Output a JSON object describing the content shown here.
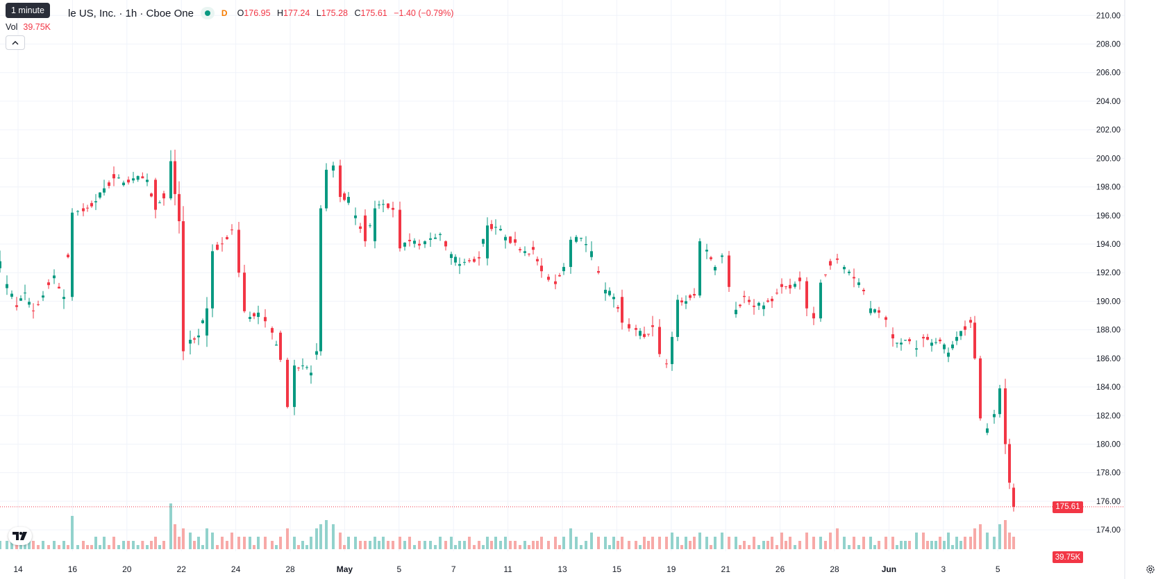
{
  "legend": {
    "tooltip": "1 minute",
    "title": "le US, Inc. · 1h · Cboe One",
    "badge": "D",
    "o_label": "O",
    "o": "176.95",
    "h_label": "H",
    "h": "177.24",
    "l_label": "L",
    "l": "175.28",
    "c_label": "C",
    "c": "175.61",
    "change": "−1.40 (−0.79%)"
  },
  "volume_legend": {
    "label": "Vol",
    "value": "39.75K"
  },
  "last_price_tag": "175.61",
  "last_volume_tag": "39.75K",
  "colors": {
    "up": "#089981",
    "down": "#f23645",
    "up_vol": "#92d2cc",
    "down_vol": "#f7a9a7"
  },
  "icons": {
    "logo": "tradingview-logo-icon",
    "collapse": "chevron-up-icon",
    "settings": "gear-icon",
    "market_status": "market-status-dot-icon"
  },
  "chart_data": {
    "type": "candlestick",
    "timeframe": "1h",
    "ylim": [
      172.5,
      210.5
    ],
    "y_ticks": [
      "174.00",
      "176.00",
      "178.00",
      "180.00",
      "182.00",
      "184.00",
      "186.00",
      "188.00",
      "190.00",
      "192.00",
      "194.00",
      "196.00",
      "198.00",
      "200.00",
      "202.00",
      "204.00",
      "206.00",
      "208.00",
      "210.00"
    ],
    "x_ticks": [
      "14",
      "16",
      "20",
      "22",
      "24",
      "28",
      "May",
      "5",
      "7",
      "11",
      "13",
      "15",
      "19",
      "21",
      "26",
      "28",
      "Jun",
      "3",
      "5"
    ],
    "anchors": [
      [
        0,
        192.8,
        1.4,
        2
      ],
      [
        10,
        191.2,
        1.4,
        2
      ],
      [
        24,
        189.6,
        1.2,
        3
      ],
      [
        36,
        190.6,
        1.0,
        2
      ],
      [
        48,
        189.3,
        0.9,
        2
      ],
      [
        62,
        190.4,
        1.0,
        2
      ],
      [
        78,
        191.8,
        1.2,
        2
      ],
      [
        92,
        190.3,
        1.3,
        2
      ],
      [
        104,
        196.2,
        1.0,
        8
      ],
      [
        120,
        196.3,
        0.8,
        2
      ],
      [
        138,
        197.0,
        1.0,
        3
      ],
      [
        150,
        197.9,
        1.0,
        3
      ],
      [
        164,
        198.6,
        1.0,
        3
      ],
      [
        178,
        198.3,
        1.0,
        2
      ],
      [
        192,
        198.6,
        0.8,
        2
      ],
      [
        212,
        198.5,
        0.7,
        1
      ],
      [
        224,
        196.4,
        1.3,
        3
      ],
      [
        236,
        197.2,
        1.2,
        2
      ],
      [
        246,
        199.8,
        1.5,
        11
      ],
      [
        252,
        197.5,
        1.6,
        6
      ],
      [
        258,
        195.6,
        1.6,
        3
      ],
      [
        264,
        186.5,
        2.5,
        5
      ],
      [
        274,
        187.3,
        1.5,
        4
      ],
      [
        286,
        187.6,
        1.2,
        3
      ],
      [
        298,
        189.5,
        1.4,
        5
      ],
      [
        306,
        193.5,
        1.2,
        4
      ],
      [
        320,
        194.0,
        0.9,
        3
      ],
      [
        334,
        195.0,
        1.0,
        4
      ],
      [
        344,
        192.0,
        1.2,
        3
      ],
      [
        352,
        189.3,
        1.2,
        3
      ],
      [
        360,
        188.9,
        1.0,
        3
      ],
      [
        372,
        189.2,
        1.0,
        3
      ],
      [
        382,
        188.6,
        1.0,
        3
      ],
      [
        392,
        187.8,
        1.0,
        2
      ],
      [
        404,
        185.9,
        1.1,
        3
      ],
      [
        414,
        182.6,
        1.1,
        5
      ],
      [
        424,
        185.5,
        1.0,
        3
      ],
      [
        436,
        185.5,
        0.8,
        2
      ],
      [
        448,
        185.0,
        1.0,
        3
      ],
      [
        456,
        186.5,
        1.0,
        5
      ],
      [
        462,
        196.5,
        2.0,
        6
      ],
      [
        470,
        199.2,
        1.2,
        7
      ],
      [
        480,
        199.5,
        1.2,
        6
      ],
      [
        490,
        197.3,
        1.1,
        4
      ],
      [
        502,
        197.3,
        1.2,
        3
      ],
      [
        512,
        196.0,
        1.0,
        3
      ],
      [
        526,
        194.2,
        1.0,
        2
      ],
      [
        540,
        196.5,
        1.2,
        3
      ],
      [
        552,
        196.8,
        0.9,
        3
      ],
      [
        566,
        196.4,
        0.9,
        2
      ],
      [
        576,
        193.7,
        1.2,
        3
      ],
      [
        590,
        194.2,
        1.0,
        3
      ],
      [
        604,
        193.9,
        0.9,
        2
      ],
      [
        620,
        194.4,
        0.9,
        2
      ],
      [
        634,
        194.7,
        0.9,
        3
      ],
      [
        650,
        193.3,
        1.2,
        3
      ],
      [
        662,
        192.6,
        1.0,
        2
      ],
      [
        676,
        192.8,
        1.0,
        3
      ],
      [
        690,
        193.0,
        1.0,
        2
      ],
      [
        702,
        195.3,
        1.2,
        3
      ],
      [
        714,
        195.2,
        1.0,
        3
      ],
      [
        728,
        194.5,
        1.0,
        3
      ],
      [
        742,
        194.1,
        0.9,
        2
      ],
      [
        756,
        193.5,
        1.0,
        2
      ],
      [
        768,
        193.6,
        0.9,
        2
      ],
      [
        780,
        192.1,
        1.2,
        3
      ],
      [
        790,
        191.5,
        1.0,
        2
      ],
      [
        800,
        191.2,
        1.2,
        3
      ],
      [
        812,
        192.4,
        1.0,
        3
      ],
      [
        822,
        194.3,
        1.2,
        5
      ],
      [
        830,
        194.5,
        1.3,
        3
      ],
      [
        844,
        194.0,
        1.0,
        2
      ],
      [
        852,
        193.5,
        1.2,
        4
      ],
      [
        862,
        192.0,
        1.1,
        3
      ],
      [
        872,
        190.8,
        1.1,
        3
      ],
      [
        884,
        190.3,
        1.1,
        3
      ],
      [
        896,
        188.5,
        1.0,
        3
      ],
      [
        906,
        188.1,
        0.9,
        2
      ],
      [
        916,
        188.0,
        0.8,
        2
      ],
      [
        928,
        187.5,
        1.0,
        3
      ],
      [
        940,
        188.2,
        1.3,
        3
      ],
      [
        950,
        186.3,
        1.1,
        3
      ],
      [
        960,
        185.6,
        0.9,
        3
      ],
      [
        968,
        187.5,
        1.0,
        4
      ],
      [
        976,
        190.1,
        1.0,
        3
      ],
      [
        988,
        190.0,
        1.0,
        3
      ],
      [
        1000,
        190.4,
        1.1,
        3
      ],
      [
        1008,
        194.2,
        1.0,
        4
      ],
      [
        1018,
        193.6,
        1.0,
        3
      ],
      [
        1030,
        192.4,
        1.0,
        3
      ],
      [
        1040,
        193.2,
        1.1,
        4
      ],
      [
        1050,
        191.0,
        1.1,
        3
      ],
      [
        1060,
        189.4,
        1.1,
        3
      ],
      [
        1072,
        190.3,
        0.9,
        2
      ],
      [
        1086,
        189.6,
        1.0,
        3
      ],
      [
        1100,
        189.7,
        0.9,
        2
      ],
      [
        1112,
        190.0,
        0.9,
        3
      ],
      [
        1126,
        191.0,
        1.2,
        4
      ],
      [
        1138,
        190.9,
        1.0,
        3
      ],
      [
        1152,
        191.4,
        1.0,
        2
      ],
      [
        1162,
        189.5,
        1.2,
        4
      ],
      [
        1172,
        188.8,
        1.2,
        3
      ],
      [
        1182,
        191.3,
        1.2,
        3
      ],
      [
        1196,
        192.5,
        1.3,
        4
      ],
      [
        1206,
        192.9,
        1.1,
        5
      ],
      [
        1216,
        192.4,
        1.1,
        3
      ],
      [
        1230,
        191.6,
        1.1,
        3
      ],
      [
        1244,
        190.7,
        1.1,
        3
      ],
      [
        1254,
        189.5,
        1.0,
        3
      ],
      [
        1266,
        189.2,
        0.9,
        2
      ],
      [
        1276,
        188.7,
        1.0,
        3
      ],
      [
        1286,
        187.4,
        1.0,
        3
      ],
      [
        1298,
        187.1,
        0.8,
        2
      ],
      [
        1310,
        187.2,
        0.8,
        2
      ],
      [
        1320,
        186.7,
        1.2,
        4
      ],
      [
        1330,
        187.4,
        1.1,
        4
      ],
      [
        1342,
        187.1,
        0.9,
        2
      ],
      [
        1354,
        187.2,
        1.0,
        3
      ],
      [
        1366,
        186.4,
        1.1,
        4
      ],
      [
        1378,
        187.5,
        0.9,
        3
      ],
      [
        1390,
        188.0,
        0.9,
        3
      ],
      [
        1398,
        188.5,
        0.8,
        3
      ],
      [
        1404,
        186.0,
        1.6,
        5
      ],
      [
        1412,
        181.8,
        1.3,
        6
      ],
      [
        1422,
        181.1,
        1.0,
        4
      ],
      [
        1432,
        182.1,
        1.1,
        3
      ],
      [
        1440,
        183.9,
        1.2,
        6
      ],
      [
        1448,
        180.0,
        1.6,
        7
      ],
      [
        1454,
        177.3,
        0.8,
        4
      ],
      [
        1460,
        175.8,
        0.9,
        3
      ]
    ],
    "last": {
      "open": 176.95,
      "high": 177.24,
      "low": 175.28,
      "close": 175.61,
      "volume": "39.75K"
    }
  }
}
